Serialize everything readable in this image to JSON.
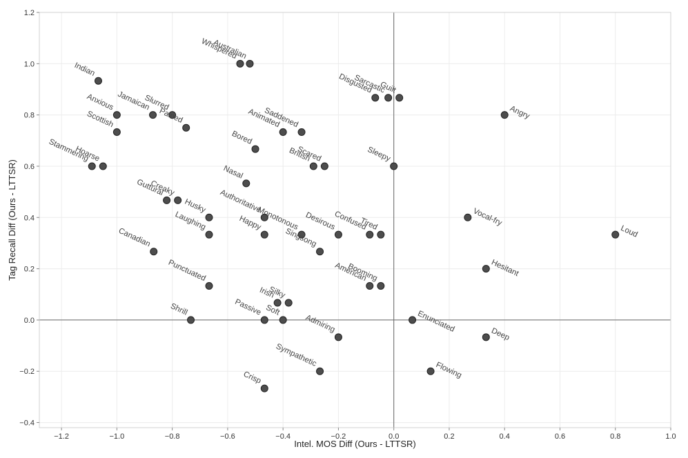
{
  "chart_data": {
    "type": "scatter",
    "xlabel": "Intel. MOS Diff (Ours - LTTSR)",
    "ylabel": "Tag Recall Diff (Ours - LTTSR)",
    "xlim": [
      -1.28,
      1.0
    ],
    "ylim": [
      -0.42,
      1.2
    ],
    "xticks": [
      "-1.2",
      "-1.0",
      "-0.8",
      "-0.6",
      "-0.4",
      "-0.2",
      "0.0",
      "0.2",
      "0.4",
      "0.6",
      "0.8",
      "1.0"
    ],
    "yticks": [
      "-0.4",
      "-0.2",
      "0.0",
      "0.2",
      "0.4",
      "0.6",
      "0.8",
      "1.0",
      "1.2"
    ],
    "grid": true,
    "zero_lines": true,
    "point_color": "#4d4d4d",
    "points": [
      {
        "label": "Australian",
        "x": -0.52,
        "y": 1.0
      },
      {
        "label": "Whispered",
        "x": -0.555,
        "y": 1.0
      },
      {
        "label": "Indian",
        "x": -1.067,
        "y": 0.933
      },
      {
        "label": "Sarcastic",
        "x": -0.02,
        "y": 0.867
      },
      {
        "label": "Disgusted",
        "x": -0.067,
        "y": 0.867
      },
      {
        "label": "Guilt",
        "x": 0.02,
        "y": 0.867
      },
      {
        "label": "Angry",
        "x": 0.4,
        "y": 0.8
      },
      {
        "label": "Anxious",
        "x": -1.0,
        "y": 0.8
      },
      {
        "label": "Slurred",
        "x": -0.8,
        "y": 0.8
      },
      {
        "label": "Jamaican",
        "x": -0.87,
        "y": 0.8
      },
      {
        "label": "Pained",
        "x": -0.75,
        "y": 0.75
      },
      {
        "label": "Scottish",
        "x": -1.0,
        "y": 0.733
      },
      {
        "label": "Saddened",
        "x": -0.333,
        "y": 0.733
      },
      {
        "label": "Animated",
        "x": -0.4,
        "y": 0.733
      },
      {
        "label": "Bored",
        "x": -0.5,
        "y": 0.667
      },
      {
        "label": "Scared",
        "x": -0.25,
        "y": 0.6
      },
      {
        "label": "British",
        "x": -0.29,
        "y": 0.6
      },
      {
        "label": "Sleepy",
        "x": 0.0,
        "y": 0.6
      },
      {
        "label": "Stammering",
        "x": -1.09,
        "y": 0.6
      },
      {
        "label": "Hoarse",
        "x": -1.05,
        "y": 0.6
      },
      {
        "label": "Nasal",
        "x": -0.533,
        "y": 0.533
      },
      {
        "label": "Guttural",
        "x": -0.82,
        "y": 0.467
      },
      {
        "label": "Creaky",
        "x": -0.78,
        "y": 0.467
      },
      {
        "label": "Husky",
        "x": -0.667,
        "y": 0.4
      },
      {
        "label": "Authoritative",
        "x": -0.467,
        "y": 0.4
      },
      {
        "label": "Vocal-fry",
        "x": 0.267,
        "y": 0.4
      },
      {
        "label": "Laughing",
        "x": -0.667,
        "y": 0.333
      },
      {
        "label": "Happy",
        "x": -0.467,
        "y": 0.333
      },
      {
        "label": "Monotonous",
        "x": -0.333,
        "y": 0.333
      },
      {
        "label": "Desirous",
        "x": -0.2,
        "y": 0.333
      },
      {
        "label": "Confused",
        "x": -0.087,
        "y": 0.333
      },
      {
        "label": "Tired",
        "x": -0.047,
        "y": 0.333
      },
      {
        "label": "Loud",
        "x": 0.8,
        "y": 0.333
      },
      {
        "label": "Canadian",
        "x": -0.867,
        "y": 0.267
      },
      {
        "label": "Singsong",
        "x": -0.267,
        "y": 0.267
      },
      {
        "label": "Hesitant",
        "x": 0.333,
        "y": 0.2
      },
      {
        "label": "Punctuated",
        "x": -0.667,
        "y": 0.133
      },
      {
        "label": "Booming",
        "x": -0.047,
        "y": 0.133
      },
      {
        "label": "American",
        "x": -0.087,
        "y": 0.133
      },
      {
        "label": "Silky",
        "x": -0.38,
        "y": 0.067
      },
      {
        "label": "Irish",
        "x": -0.42,
        "y": 0.067
      },
      {
        "label": "Shrill",
        "x": -0.733,
        "y": 0.0
      },
      {
        "label": "Soft",
        "x": -0.4,
        "y": 0.0
      },
      {
        "label": "Passive",
        "x": -0.467,
        "y": 0.0
      },
      {
        "label": "Enunciated",
        "x": 0.067,
        "y": 0.0
      },
      {
        "label": "Admiring",
        "x": -0.2,
        "y": -0.067
      },
      {
        "label": "Deep",
        "x": 0.333,
        "y": -0.067
      },
      {
        "label": "Sympathetic",
        "x": -0.267,
        "y": -0.2
      },
      {
        "label": "Flowing",
        "x": 0.133,
        "y": -0.2
      },
      {
        "label": "Crisp",
        "x": -0.467,
        "y": -0.267
      }
    ]
  }
}
